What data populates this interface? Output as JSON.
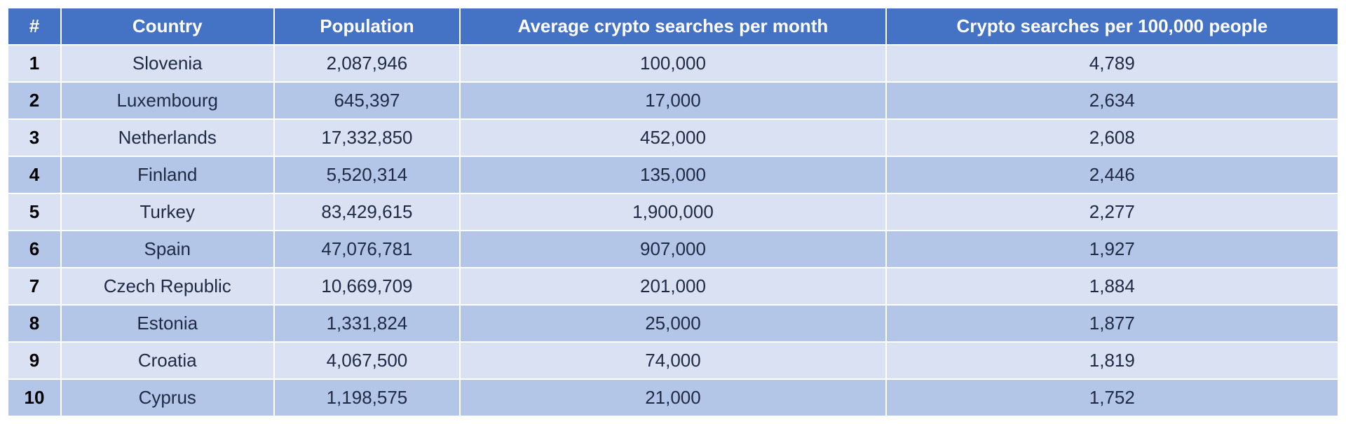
{
  "table": {
    "header_bg": "#4472c4",
    "header_color": "#ffffff",
    "row_odd_bg": "#d9e1f2",
    "row_even_bg": "#b4c6e7",
    "text_color": "#1f2a44",
    "rank_color": "#000000",
    "border_color": "#ffffff",
    "font_size": 26,
    "columns": [
      {
        "key": "rank",
        "label": "#",
        "width": "4%"
      },
      {
        "key": "country",
        "label": "Country",
        "width": "16%"
      },
      {
        "key": "population",
        "label": "Population",
        "width": "14%"
      },
      {
        "key": "avg_searches",
        "label": "Average crypto searches per month",
        "width": "32%"
      },
      {
        "key": "per_100k",
        "label": "Crypto searches per 100,000 people",
        "width": "34%"
      }
    ],
    "rows": [
      {
        "rank": "1",
        "country": "Slovenia",
        "population": "2,087,946",
        "avg_searches": "100,000",
        "per_100k": "4,789"
      },
      {
        "rank": "2",
        "country": "Luxembourg",
        "population": "645,397",
        "avg_searches": "17,000",
        "per_100k": "2,634"
      },
      {
        "rank": "3",
        "country": "Netherlands",
        "population": "17,332,850",
        "avg_searches": "452,000",
        "per_100k": "2,608"
      },
      {
        "rank": "4",
        "country": "Finland",
        "population": "5,520,314",
        "avg_searches": "135,000",
        "per_100k": "2,446"
      },
      {
        "rank": "5",
        "country": "Turkey",
        "population": "83,429,615",
        "avg_searches": "1,900,000",
        "per_100k": "2,277"
      },
      {
        "rank": "6",
        "country": "Spain",
        "population": "47,076,781",
        "avg_searches": "907,000",
        "per_100k": "1,927"
      },
      {
        "rank": "7",
        "country": "Czech Republic",
        "population": "10,669,709",
        "avg_searches": "201,000",
        "per_100k": "1,884"
      },
      {
        "rank": "8",
        "country": "Estonia",
        "population": "1,331,824",
        "avg_searches": "25,000",
        "per_100k": "1,877"
      },
      {
        "rank": "9",
        "country": "Croatia",
        "population": "4,067,500",
        "avg_searches": "74,000",
        "per_100k": "1,819"
      },
      {
        "rank": "10",
        "country": "Cyprus",
        "population": "1,198,575",
        "avg_searches": "21,000",
        "per_100k": "1,752"
      }
    ]
  }
}
